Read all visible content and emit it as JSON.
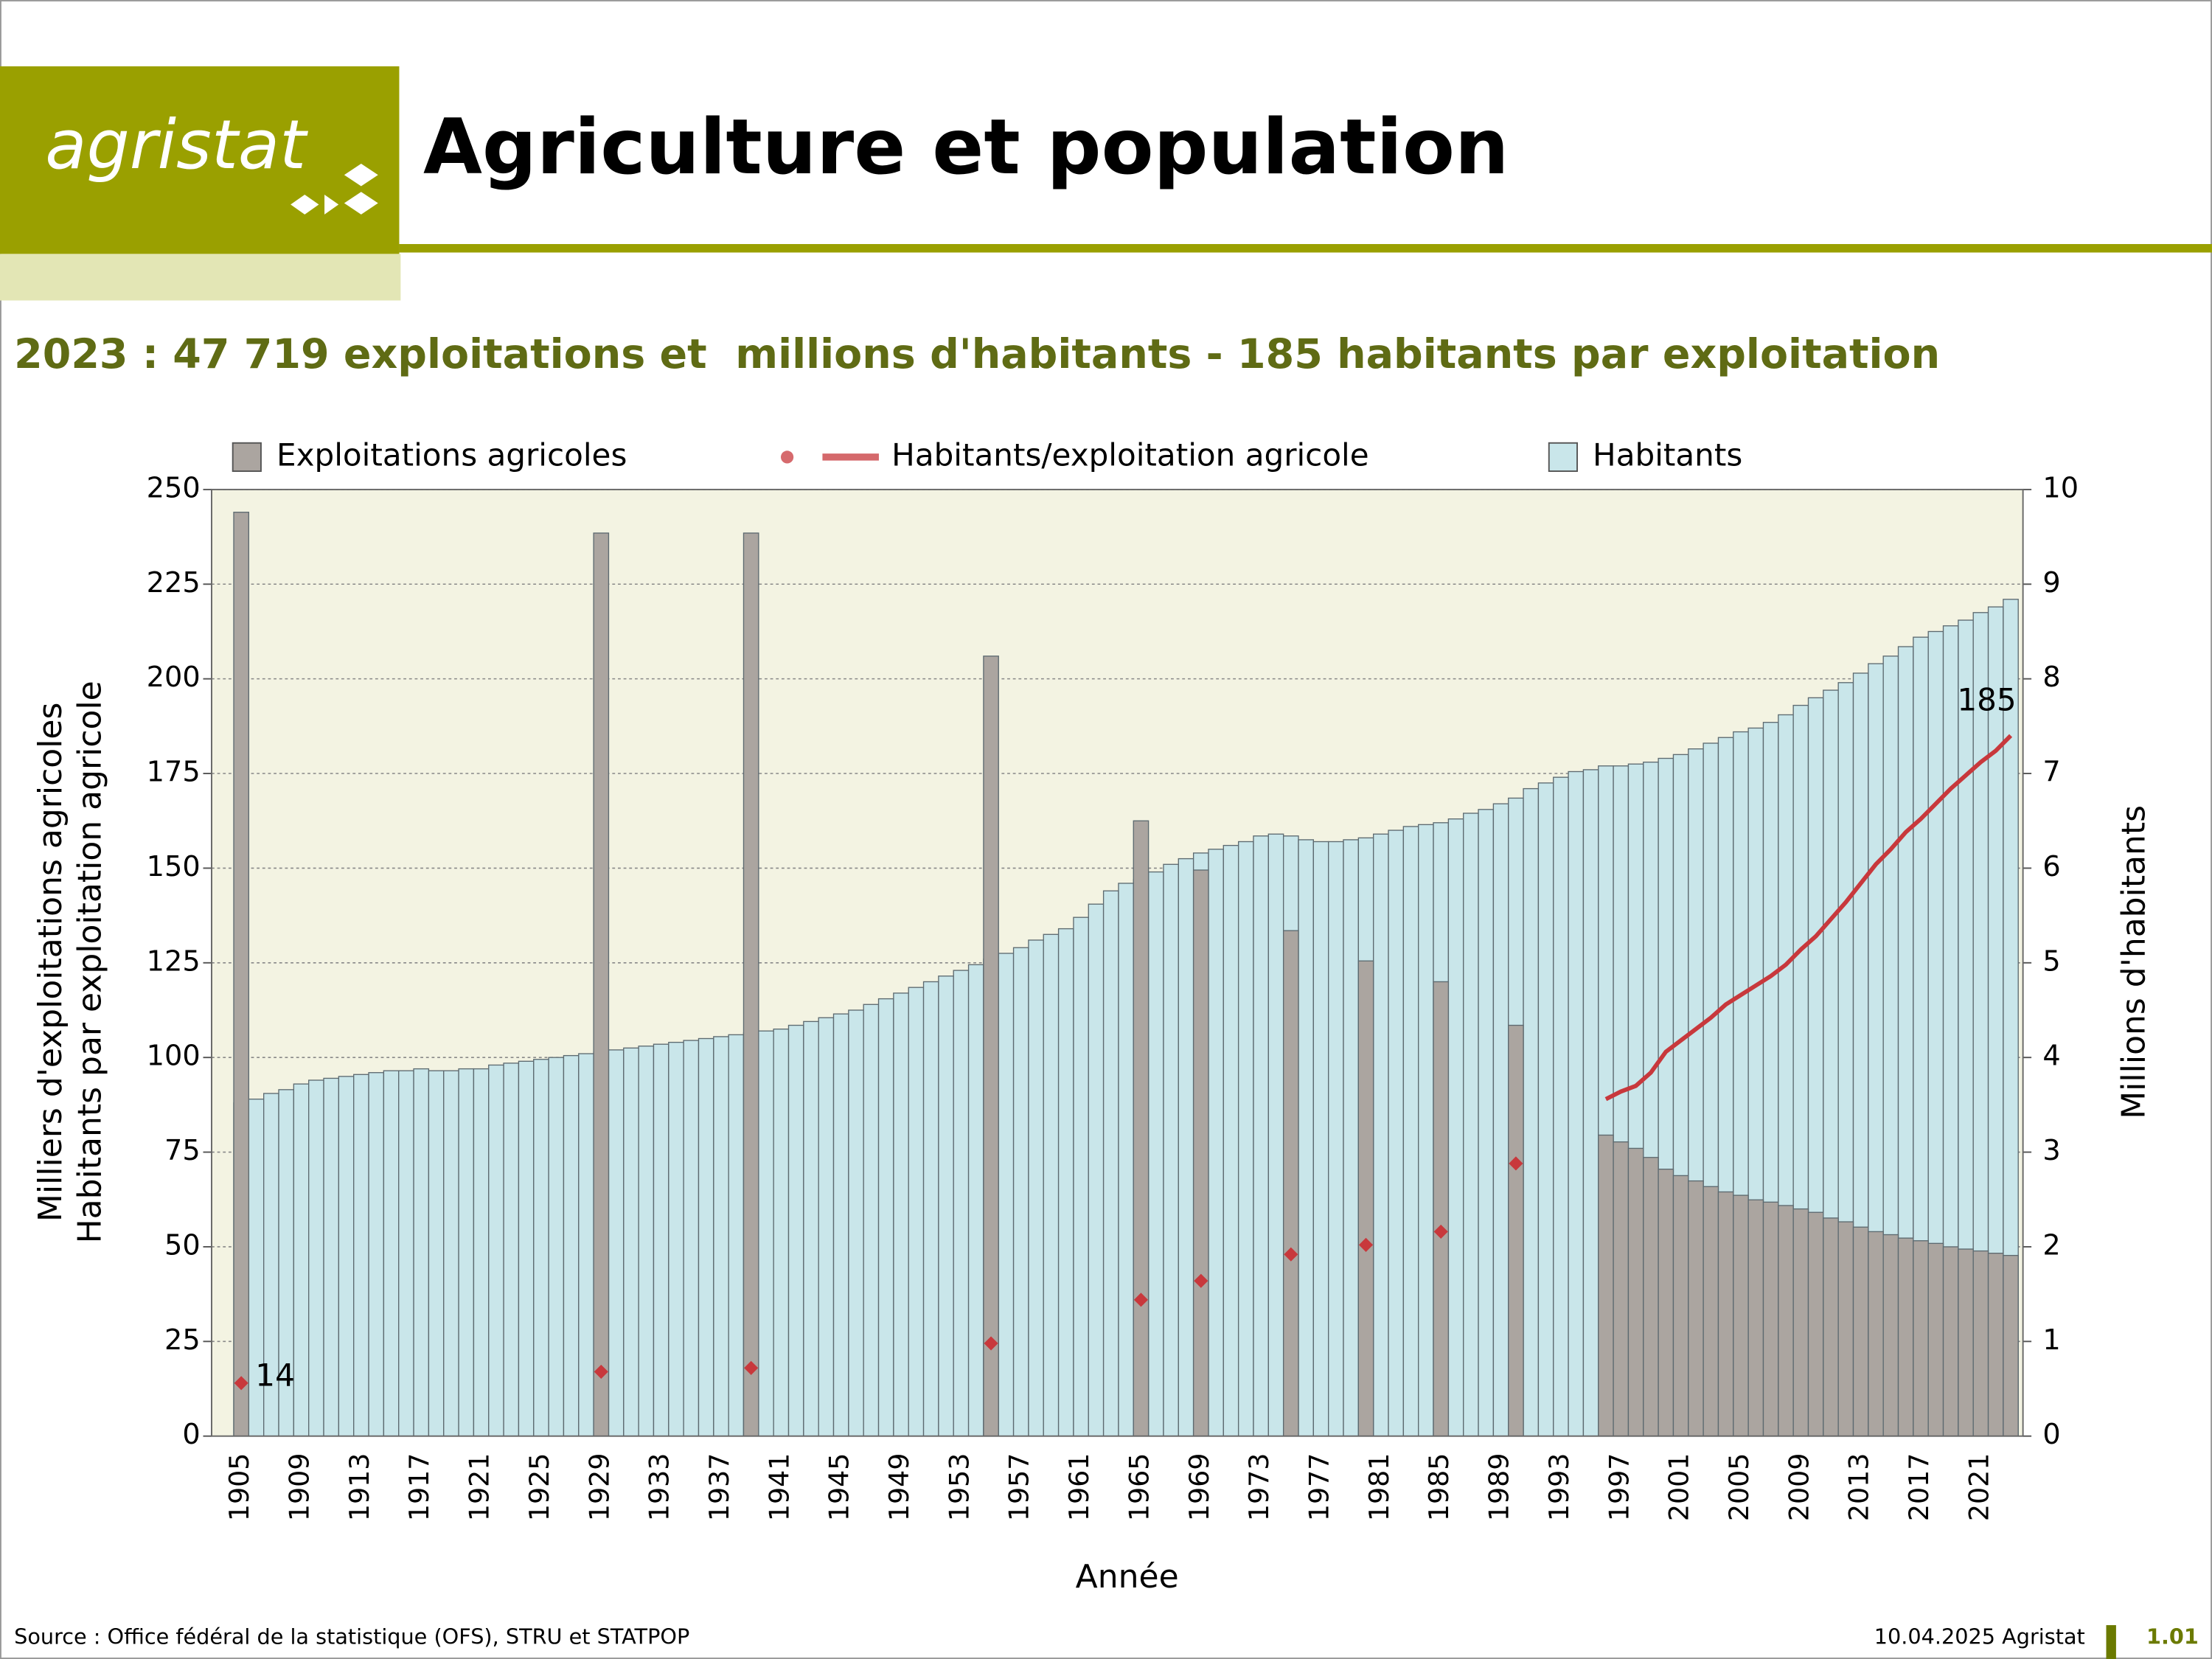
{
  "header": {
    "logo": "agristat",
    "title": "Agriculture et population"
  },
  "footer": {
    "source": "Source : Office fédéral de la statistique (OFS), STRU et STATPOP",
    "date": "10.04.2025 Agristat",
    "page": "1.01"
  },
  "chart_data": {
    "type": "bar",
    "subtitle": "2023 : 47 719 exploitations et  millions d'habitants - 185 habitants par exploitation",
    "x_label": "Année",
    "y_label": [
      "Milliers d'exploitations agricoles",
      "Habitants par exploitation agricole"
    ],
    "y2_label": "Millions d'habitants",
    "categories": [
      "1905",
      null,
      null,
      null,
      "1909",
      null,
      null,
      null,
      "1913",
      null,
      null,
      null,
      "1917",
      null,
      null,
      null,
      "1921",
      null,
      null,
      null,
      "1925",
      null,
      null,
      null,
      "1929",
      null,
      null,
      null,
      "1933",
      null,
      null,
      null,
      "1937",
      null,
      null,
      null,
      "1941",
      null,
      null,
      null,
      "1945",
      null,
      null,
      null,
      "1949",
      null,
      null,
      null,
      "1953",
      null,
      null,
      null,
      "1957",
      null,
      null,
      null,
      "1961",
      null,
      null,
      null,
      "1965",
      null,
      null,
      null,
      "1969",
      null,
      null,
      null,
      "1973",
      null,
      null,
      null,
      "1977",
      null,
      null,
      null,
      "1981",
      null,
      null,
      null,
      "1985",
      null,
      null,
      null,
      "1989",
      null,
      null,
      null,
      "1993",
      null,
      null,
      null,
      "1997",
      null,
      null,
      null,
      "2001",
      null,
      null,
      null,
      "2005",
      null,
      null,
      null,
      "2009",
      null,
      null,
      null,
      "2013",
      null,
      null,
      null,
      "2017",
      null,
      null,
      null,
      "2021",
      null,
      null
    ],
    "series": [
      {
        "name": "Habitants",
        "type": "bar",
        "axis": "y2",
        "color": "#c9e6ea",
        "values": [
          3.52,
          3.56,
          3.62,
          3.66,
          3.72,
          3.76,
          3.78,
          3.8,
          3.82,
          3.84,
          3.86,
          3.86,
          3.88,
          3.86,
          3.86,
          3.88,
          3.88,
          3.92,
          3.94,
          3.96,
          3.98,
          4.0,
          4.02,
          4.04,
          4.06,
          4.08,
          4.1,
          4.12,
          4.14,
          4.16,
          4.18,
          4.2,
          4.22,
          4.24,
          4.26,
          4.28,
          4.3,
          4.34,
          4.38,
          4.42,
          4.46,
          4.5,
          4.56,
          4.62,
          4.68,
          4.74,
          4.8,
          4.86,
          4.92,
          4.98,
          5.04,
          5.1,
          5.16,
          5.24,
          5.3,
          5.36,
          5.48,
          5.62,
          5.76,
          5.84,
          5.88,
          5.96,
          6.04,
          6.1,
          6.16,
          6.2,
          6.24,
          6.28,
          6.34,
          6.36,
          6.34,
          6.3,
          6.28,
          6.28,
          6.3,
          6.32,
          6.36,
          6.4,
          6.44,
          6.46,
          6.48,
          6.52,
          6.58,
          6.62,
          6.68,
          6.74,
          6.84,
          6.9,
          6.96,
          7.02,
          7.04,
          7.08,
          7.08,
          7.1,
          7.12,
          7.16,
          7.2,
          7.26,
          7.32,
          7.38,
          7.44,
          7.48,
          7.54,
          7.62,
          7.72,
          7.8,
          7.88,
          7.96,
          8.06,
          8.16,
          8.24,
          8.34,
          8.44,
          8.5,
          8.56,
          8.62,
          8.7,
          8.76,
          8.84
        ]
      },
      {
        "name": "Exploitations agricoles",
        "type": "bar",
        "axis": "y",
        "color": "#aba5a0",
        "values": [
          244,
          null,
          null,
          null,
          null,
          null,
          null,
          null,
          null,
          null,
          null,
          null,
          null,
          null,
          null,
          null,
          null,
          null,
          null,
          null,
          null,
          null,
          null,
          null,
          238.5,
          null,
          null,
          null,
          null,
          null,
          null,
          null,
          null,
          null,
          238.5,
          null,
          null,
          null,
          null,
          null,
          null,
          null,
          null,
          null,
          null,
          null,
          null,
          null,
          null,
          null,
          206,
          null,
          null,
          null,
          null,
          null,
          null,
          null,
          null,
          null,
          162.5,
          null,
          null,
          null,
          149.5,
          null,
          null,
          null,
          null,
          null,
          133.5,
          null,
          null,
          null,
          null,
          125.5,
          null,
          null,
          null,
          null,
          120,
          null,
          null,
          null,
          null,
          108.5,
          null,
          null,
          null,
          null,
          null,
          79.5,
          77.7,
          76.0,
          73.6,
          70.5,
          68.8,
          67.4,
          65.9,
          64.5,
          63.6,
          62.4,
          61.8,
          60.9,
          60.0,
          59.1,
          57.6,
          56.6,
          55.2,
          54.0,
          53.2,
          52.3,
          51.6,
          50.9,
          50.0,
          49.4,
          48.9,
          48.3,
          47.719
        ]
      },
      {
        "name": "Habitants/exploitation agricole",
        "type": "line",
        "axis": "y",
        "color": "#c8383c",
        "values": [
          14,
          null,
          null,
          null,
          null,
          null,
          null,
          null,
          null,
          null,
          null,
          null,
          null,
          null,
          null,
          null,
          null,
          null,
          null,
          null,
          null,
          null,
          null,
          null,
          17,
          null,
          null,
          null,
          null,
          null,
          null,
          null,
          null,
          null,
          18,
          null,
          null,
          null,
          null,
          null,
          null,
          null,
          null,
          null,
          null,
          null,
          null,
          null,
          null,
          null,
          24.5,
          null,
          null,
          null,
          null,
          null,
          null,
          null,
          null,
          null,
          36,
          null,
          null,
          null,
          41,
          null,
          null,
          null,
          null,
          null,
          48,
          null,
          null,
          null,
          null,
          50.5,
          null,
          null,
          null,
          null,
          54,
          null,
          null,
          null,
          null,
          72,
          null,
          null,
          null,
          null,
          null,
          89,
          91,
          92.5,
          96,
          101.5,
          104.5,
          107.5,
          110.5,
          114,
          116.5,
          119,
          121.5,
          124.5,
          128.5,
          132,
          136.5,
          141,
          146,
          151,
          155,
          159.5,
          163,
          167,
          171,
          174.5,
          178,
          181,
          185
        ]
      }
    ],
    "ylim": [
      0,
      250
    ],
    "yticks": [
      0,
      25,
      50,
      75,
      100,
      125,
      150,
      175,
      200,
      225,
      250
    ],
    "y2lim": [
      0,
      10
    ],
    "y2ticks": [
      0,
      1,
      2,
      3,
      4,
      5,
      6,
      7,
      8,
      9,
      10
    ],
    "grid": true,
    "legend": "top"
  }
}
